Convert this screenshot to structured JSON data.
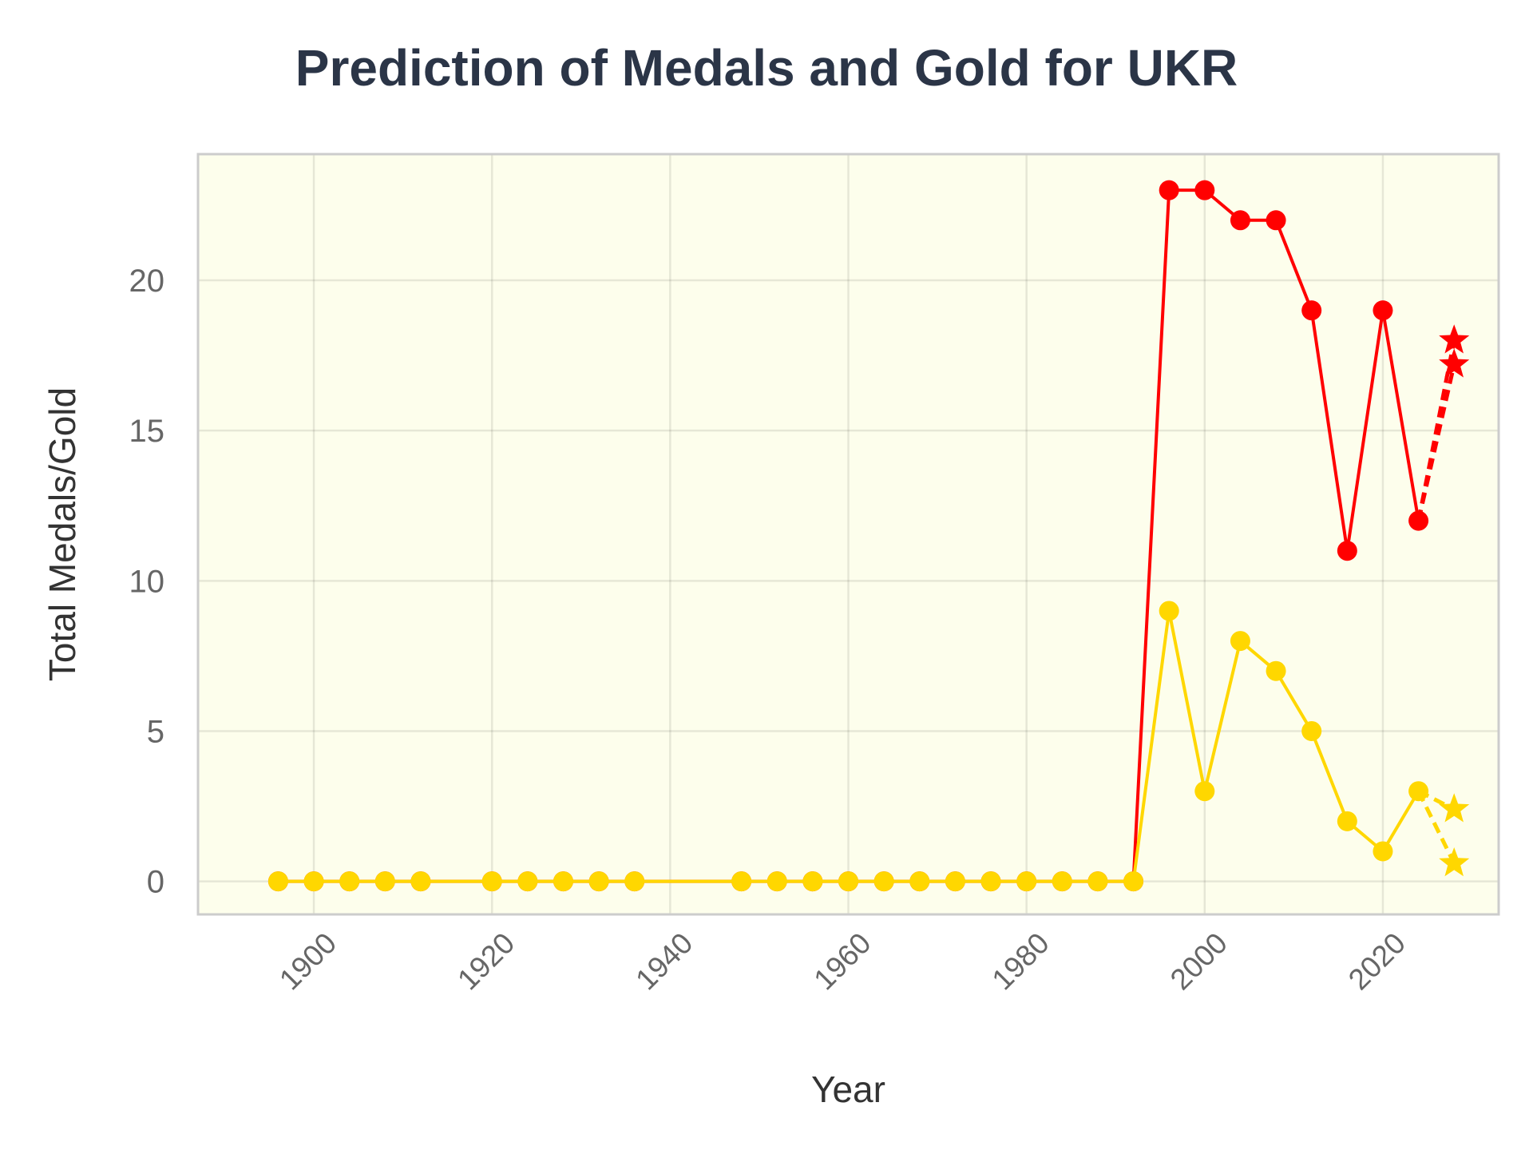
{
  "chart_data": {
    "type": "line",
    "title": "Prediction of Medals and Gold for UKR",
    "xlabel": "Year",
    "ylabel": "Total Medals/Gold",
    "xlim": [
      1887,
      2033
    ],
    "ylim": [
      -1.1,
      24.2
    ],
    "x_ticks": [
      1900,
      1920,
      1940,
      1960,
      1980,
      2000,
      2020
    ],
    "y_ticks": [
      0,
      5,
      10,
      15,
      20
    ],
    "grid": true,
    "background": "#fdfeec",
    "colors": {
      "total": "#ff0000",
      "gold": "#ffd700"
    },
    "series": [
      {
        "key": "total",
        "x": [
          1896,
          1900,
          1904,
          1908,
          1912,
          1920,
          1924,
          1928,
          1932,
          1936,
          1948,
          1952,
          1956,
          1960,
          1964,
          1968,
          1972,
          1976,
          1980,
          1984,
          1988,
          1992,
          1996,
          2000,
          2004,
          2008,
          2012,
          2016,
          2020,
          2024
        ],
        "values": [
          0,
          0,
          0,
          0,
          0,
          0,
          0,
          0,
          0,
          0,
          0,
          0,
          0,
          0,
          0,
          0,
          0,
          0,
          0,
          0,
          0,
          0,
          23,
          23,
          22,
          22,
          19,
          11,
          19,
          12
        ]
      },
      {
        "key": "gold",
        "x": [
          1896,
          1900,
          1904,
          1908,
          1912,
          1920,
          1924,
          1928,
          1932,
          1936,
          1948,
          1952,
          1956,
          1960,
          1964,
          1968,
          1972,
          1976,
          1980,
          1984,
          1988,
          1992,
          1996,
          2000,
          2004,
          2008,
          2012,
          2016,
          2020,
          2024
        ],
        "values": [
          0,
          0,
          0,
          0,
          0,
          0,
          0,
          0,
          0,
          0,
          0,
          0,
          0,
          0,
          0,
          0,
          0,
          0,
          0,
          0,
          0,
          0,
          9,
          3,
          8,
          7,
          5,
          2,
          1,
          3
        ]
      }
    ],
    "predictions": [
      {
        "key": "total",
        "from": [
          2024,
          12
        ],
        "x": 2028,
        "values": [
          18.0,
          17.2
        ]
      },
      {
        "key": "gold",
        "from": [
          2024,
          3
        ],
        "x": 2028,
        "values": [
          2.4,
          0.6
        ]
      }
    ]
  }
}
